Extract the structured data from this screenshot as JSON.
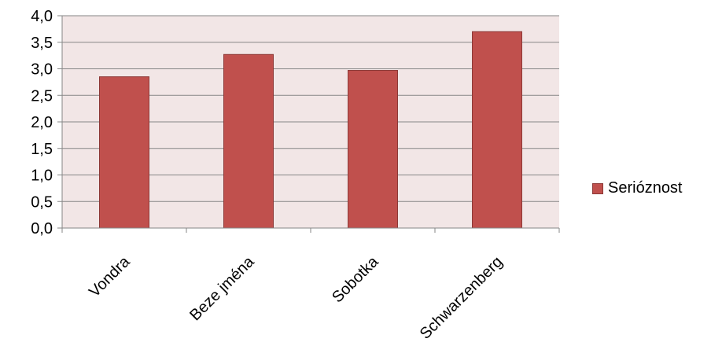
{
  "chart_data": {
    "type": "bar",
    "categories": [
      "Vondra",
      "Beze jména",
      "Sobotka",
      "Schwarzenberg"
    ],
    "series": [
      {
        "name": "Serióznost",
        "values": [
          2.85,
          3.27,
          2.97,
          3.7
        ],
        "color": "#c0504d"
      }
    ],
    "ylim": [
      0,
      4.0
    ],
    "y_ticks": [
      "0,0",
      "0,5",
      "1,0",
      "1,5",
      "2,0",
      "2,5",
      "3,0",
      "3,5",
      "4,0"
    ],
    "grid": true,
    "legend_position": "right",
    "plot_background": "#f2e6e6"
  }
}
